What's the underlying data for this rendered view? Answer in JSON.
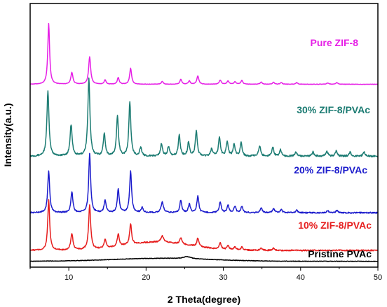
{
  "chart_data": {
    "type": "line",
    "title": "",
    "xlabel": "2 Theta(degree)",
    "ylabel": "Intensity(a.u.)",
    "xlim": [
      5,
      50
    ],
    "x_ticks": [
      10,
      20,
      30,
      40,
      50
    ],
    "y_ticks_shown": false,
    "grid": false,
    "legend": "inline labels beside each curve",
    "series": [
      {
        "name": "Pure ZIF-8",
        "color": "#e61fe6",
        "offset": 4.2,
        "baseline": 0.07,
        "noise": 0.005,
        "peaks": [
          [
            7.4,
            1.45,
            0.14
          ],
          [
            10.4,
            0.28,
            0.16
          ],
          [
            12.7,
            0.65,
            0.16
          ],
          [
            14.7,
            0.1,
            0.14
          ],
          [
            16.4,
            0.16,
            0.14
          ],
          [
            18.0,
            0.38,
            0.15
          ],
          [
            22.1,
            0.07,
            0.14
          ],
          [
            24.5,
            0.12,
            0.14
          ],
          [
            25.6,
            0.08,
            0.14
          ],
          [
            26.7,
            0.2,
            0.15
          ],
          [
            29.6,
            0.1,
            0.15
          ],
          [
            30.6,
            0.08,
            0.15
          ],
          [
            31.5,
            0.06,
            0.15
          ],
          [
            32.4,
            0.09,
            0.15
          ],
          [
            34.9,
            0.05,
            0.15
          ],
          [
            36.5,
            0.05,
            0.15
          ],
          [
            37.5,
            0.04,
            0.15
          ],
          [
            39.5,
            0.04,
            0.15
          ],
          [
            43.5,
            0.03,
            0.15
          ],
          [
            44.7,
            0.04,
            0.15
          ]
        ]
      },
      {
        "name": "30% ZIF-8/PVAc",
        "color": "#1b7b72",
        "offset": 2.5,
        "baseline": 0.05,
        "noise": 0.02,
        "peaks": [
          [
            7.3,
            1.55,
            0.16
          ],
          [
            10.3,
            0.75,
            0.16
          ],
          [
            12.6,
            1.85,
            0.16
          ],
          [
            14.6,
            0.55,
            0.15
          ],
          [
            16.3,
            0.95,
            0.15
          ],
          [
            17.9,
            1.3,
            0.15
          ],
          [
            19.3,
            0.2,
            0.15
          ],
          [
            22.0,
            0.3,
            0.15
          ],
          [
            22.9,
            0.22,
            0.15
          ],
          [
            24.3,
            0.5,
            0.15
          ],
          [
            25.5,
            0.33,
            0.15
          ],
          [
            26.5,
            0.6,
            0.15
          ],
          [
            28.5,
            0.18,
            0.15
          ],
          [
            29.5,
            0.45,
            0.15
          ],
          [
            30.5,
            0.35,
            0.15
          ],
          [
            31.4,
            0.28,
            0.15
          ],
          [
            32.3,
            0.32,
            0.15
          ],
          [
            34.7,
            0.25,
            0.15
          ],
          [
            36.4,
            0.22,
            0.15
          ],
          [
            37.4,
            0.15,
            0.15
          ],
          [
            39.4,
            0.1,
            0.15
          ],
          [
            41.6,
            0.1,
            0.15
          ],
          [
            43.4,
            0.12,
            0.15
          ],
          [
            44.6,
            0.12,
            0.15
          ],
          [
            46.4,
            0.1,
            0.15
          ],
          [
            48.2,
            0.1,
            0.15
          ]
        ]
      },
      {
        "name": "20% ZIF-8/PVAc",
        "color": "#1c1ccc",
        "offset": 1.15,
        "baseline": 0.05,
        "noise": 0.015,
        "peaks": [
          [
            7.4,
            1.0,
            0.15
          ],
          [
            10.4,
            0.5,
            0.15
          ],
          [
            12.7,
            1.4,
            0.15
          ],
          [
            14.7,
            0.3,
            0.15
          ],
          [
            16.4,
            0.55,
            0.15
          ],
          [
            18.0,
            1.0,
            0.15
          ],
          [
            19.5,
            0.12,
            0.15
          ],
          [
            22.1,
            0.25,
            0.18
          ],
          [
            24.5,
            0.3,
            0.15
          ],
          [
            25.6,
            0.2,
            0.15
          ],
          [
            26.7,
            0.4,
            0.15
          ],
          [
            29.6,
            0.25,
            0.15
          ],
          [
            30.6,
            0.18,
            0.15
          ],
          [
            31.5,
            0.15,
            0.15
          ],
          [
            32.4,
            0.15,
            0.15
          ],
          [
            34.9,
            0.12,
            0.15
          ],
          [
            36.5,
            0.1,
            0.15
          ],
          [
            37.5,
            0.07,
            0.15
          ],
          [
            39.5,
            0.06,
            0.15
          ],
          [
            43.5,
            0.05,
            0.15
          ],
          [
            44.7,
            0.05,
            0.15
          ]
        ]
      },
      {
        "name": "10% ZIF-8/PVAc",
        "color": "#e61e1e",
        "offset": 0.22,
        "baseline": 0.08,
        "hump": [
          21.5,
          0.2,
          6.0
        ],
        "noise": 0.015,
        "peaks": [
          [
            7.4,
            1.2,
            0.15
          ],
          [
            10.4,
            0.4,
            0.16
          ],
          [
            12.7,
            1.05,
            0.16
          ],
          [
            14.7,
            0.2,
            0.15
          ],
          [
            16.4,
            0.3,
            0.15
          ],
          [
            18.0,
            0.5,
            0.15
          ],
          [
            22.1,
            0.15,
            0.2
          ],
          [
            24.5,
            0.15,
            0.15
          ],
          [
            26.7,
            0.2,
            0.15
          ],
          [
            29.6,
            0.15,
            0.15
          ],
          [
            30.6,
            0.1,
            0.15
          ],
          [
            31.5,
            0.08,
            0.15
          ],
          [
            32.4,
            0.08,
            0.15
          ],
          [
            34.9,
            0.06,
            0.15
          ],
          [
            36.5,
            0.05,
            0.15
          ]
        ]
      },
      {
        "name": "Pristine PVAc",
        "color": "#000000",
        "offset": 0,
        "baseline": 0.04,
        "hump": [
          22.0,
          0.07,
          9.0
        ],
        "noise": 0.006,
        "peaks": [
          [
            25.3,
            0.05,
            0.6
          ]
        ]
      }
    ],
    "annotations": [
      {
        "text": "Pure ZIF-8",
        "color": "#e61fe6"
      },
      {
        "text": "30% ZIF-8/PVAc",
        "color": "#1b7b72"
      },
      {
        "text": "20% ZIF-8/PVAc",
        "color": "#1c1ccc"
      },
      {
        "text": "10% ZIF-8/PVAc",
        "color": "#e61e1e"
      },
      {
        "text": "Pristine PVAc",
        "color": "#000000"
      }
    ]
  }
}
